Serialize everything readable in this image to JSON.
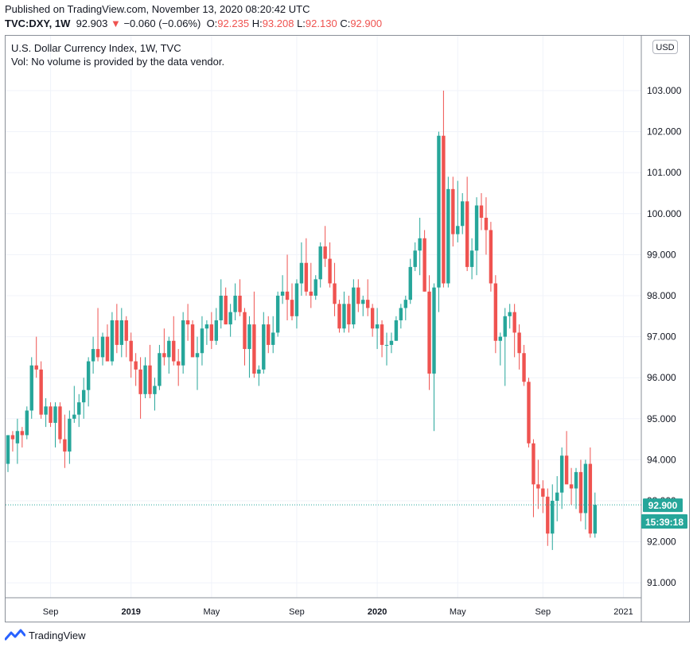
{
  "header": {
    "published": "Published on TradingView.com, November 13, 2020 08:20:42 UTC",
    "symbol": "TVC:DXY, 1W",
    "last": "92.903",
    "change_arrow": "▼",
    "change": "−0.060 (−0.06%)",
    "open_label": "O:",
    "open": "92.235",
    "high_label": "H:",
    "high": "93.208",
    "low_label": "L:",
    "low": "92.130",
    "close_label": "C:",
    "close": "92.900"
  },
  "legend": {
    "title": "U.S. Dollar Currency Index, 1W, TVC",
    "volume": "Vol: No volume is provided by the data vendor."
  },
  "currency_button": "USD",
  "price_badge": {
    "price": "92.900",
    "countdown": "15:39:18"
  },
  "footer": {
    "brand": "TradingView"
  },
  "colors": {
    "up": "#26a69a",
    "down": "#ef5350",
    "grid": "#f0f3fa",
    "badge": "#26a69a"
  },
  "chart_data": {
    "type": "candlestick",
    "title": "U.S. Dollar Currency Index, 1W, TVC",
    "ylim": [
      90.5,
      104
    ],
    "y_ticks": [
      91,
      92,
      93,
      94,
      95,
      96,
      97,
      98,
      99,
      100,
      101,
      102,
      103
    ],
    "y_tick_labels": [
      "91.000",
      "92.000",
      "93.000",
      "94.000",
      "95.000",
      "96.000",
      "97.000",
      "98.000",
      "99.000",
      "100.000",
      "101.000",
      "102.000",
      "103.000"
    ],
    "x_ticks": [
      {
        "label": "Sep",
        "index": 9,
        "bold": false
      },
      {
        "label": "2019",
        "index": 26,
        "bold": true
      },
      {
        "label": "May",
        "index": 43,
        "bold": false
      },
      {
        "label": "Sep",
        "index": 61,
        "bold": false
      },
      {
        "label": "2020",
        "index": 78,
        "bold": true
      },
      {
        "label": "May",
        "index": 95,
        "bold": false
      },
      {
        "label": "Sep",
        "index": 113,
        "bold": false
      },
      {
        "label": "2021",
        "index": 130,
        "bold": false
      }
    ],
    "last_price": 92.9,
    "candles": [
      {
        "o": 93.9,
        "h": 94.6,
        "l": 93.7,
        "c": 94.6
      },
      {
        "o": 94.6,
        "h": 94.7,
        "l": 94.2,
        "c": 94.5
      },
      {
        "o": 94.4,
        "h": 95.0,
        "l": 93.9,
        "c": 94.7
      },
      {
        "o": 94.7,
        "h": 94.8,
        "l": 94.3,
        "c": 94.6
      },
      {
        "o": 94.6,
        "h": 95.3,
        "l": 94.5,
        "c": 95.2
      },
      {
        "o": 95.2,
        "h": 96.5,
        "l": 95.0,
        "c": 96.3
      },
      {
        "o": 96.3,
        "h": 97.0,
        "l": 96.0,
        "c": 96.2
      },
      {
        "o": 96.2,
        "h": 96.4,
        "l": 95.0,
        "c": 95.1
      },
      {
        "o": 95.1,
        "h": 95.5,
        "l": 94.8,
        "c": 95.3
      },
      {
        "o": 95.3,
        "h": 95.4,
        "l": 94.8,
        "c": 94.9
      },
      {
        "o": 94.9,
        "h": 95.4,
        "l": 94.3,
        "c": 95.3
      },
      {
        "o": 95.3,
        "h": 95.4,
        "l": 94.4,
        "c": 94.5
      },
      {
        "o": 94.5,
        "h": 95.1,
        "l": 93.8,
        "c": 94.2
      },
      {
        "o": 94.2,
        "h": 95.2,
        "l": 93.9,
        "c": 95.0
      },
      {
        "o": 95.0,
        "h": 95.8,
        "l": 94.9,
        "c": 95.1
      },
      {
        "o": 95.1,
        "h": 95.6,
        "l": 94.8,
        "c": 95.4
      },
      {
        "o": 95.4,
        "h": 96.0,
        "l": 95.0,
        "c": 95.7
      },
      {
        "o": 95.7,
        "h": 96.5,
        "l": 95.3,
        "c": 96.4
      },
      {
        "o": 96.4,
        "h": 97.0,
        "l": 96.1,
        "c": 96.7
      },
      {
        "o": 96.7,
        "h": 97.7,
        "l": 96.4,
        "c": 96.5
      },
      {
        "o": 96.5,
        "h": 97.1,
        "l": 96.3,
        "c": 97.0
      },
      {
        "o": 97.0,
        "h": 97.3,
        "l": 96.4,
        "c": 96.4
      },
      {
        "o": 96.4,
        "h": 97.6,
        "l": 96.3,
        "c": 97.4
      },
      {
        "o": 97.4,
        "h": 97.8,
        "l": 96.6,
        "c": 96.8
      },
      {
        "o": 96.8,
        "h": 97.7,
        "l": 96.5,
        "c": 97.4
      },
      {
        "o": 97.4,
        "h": 97.5,
        "l": 96.5,
        "c": 96.9
      },
      {
        "o": 96.9,
        "h": 97.1,
        "l": 96.0,
        "c": 96.4
      },
      {
        "o": 96.4,
        "h": 96.6,
        "l": 95.8,
        "c": 96.2
      },
      {
        "o": 96.2,
        "h": 96.5,
        "l": 95.0,
        "c": 95.6
      },
      {
        "o": 95.6,
        "h": 96.5,
        "l": 95.5,
        "c": 96.3
      },
      {
        "o": 96.3,
        "h": 96.8,
        "l": 95.5,
        "c": 95.6
      },
      {
        "o": 95.6,
        "h": 96.0,
        "l": 95.2,
        "c": 95.8
      },
      {
        "o": 95.8,
        "h": 96.8,
        "l": 95.7,
        "c": 96.6
      },
      {
        "o": 96.6,
        "h": 97.2,
        "l": 96.3,
        "c": 96.5
      },
      {
        "o": 96.5,
        "h": 97.0,
        "l": 96.1,
        "c": 96.9
      },
      {
        "o": 96.9,
        "h": 97.5,
        "l": 96.3,
        "c": 96.4
      },
      {
        "o": 96.4,
        "h": 96.7,
        "l": 95.8,
        "c": 96.3
      },
      {
        "o": 96.3,
        "h": 97.6,
        "l": 96.1,
        "c": 97.4
      },
      {
        "o": 97.4,
        "h": 97.8,
        "l": 96.9,
        "c": 97.3
      },
      {
        "o": 97.3,
        "h": 97.4,
        "l": 96.5,
        "c": 96.5
      },
      {
        "o": 96.5,
        "h": 97.0,
        "l": 95.7,
        "c": 96.6
      },
      {
        "o": 96.6,
        "h": 97.5,
        "l": 96.3,
        "c": 97.2
      },
      {
        "o": 97.2,
        "h": 97.4,
        "l": 96.8,
        "c": 97.3
      },
      {
        "o": 97.3,
        "h": 97.6,
        "l": 96.7,
        "c": 96.9
      },
      {
        "o": 96.9,
        "h": 97.7,
        "l": 96.8,
        "c": 97.4
      },
      {
        "o": 97.4,
        "h": 98.4,
        "l": 97.2,
        "c": 98.0
      },
      {
        "o": 98.0,
        "h": 98.2,
        "l": 97.3,
        "c": 97.3
      },
      {
        "o": 97.3,
        "h": 97.8,
        "l": 97.0,
        "c": 97.6
      },
      {
        "o": 97.6,
        "h": 98.3,
        "l": 97.4,
        "c": 98.0
      },
      {
        "o": 98.0,
        "h": 98.4,
        "l": 97.5,
        "c": 97.6
      },
      {
        "o": 97.6,
        "h": 97.7,
        "l": 96.3,
        "c": 96.7
      },
      {
        "o": 96.7,
        "h": 97.5,
        "l": 96.0,
        "c": 97.3
      },
      {
        "o": 97.3,
        "h": 98.1,
        "l": 96.0,
        "c": 96.1
      },
      {
        "o": 96.1,
        "h": 96.3,
        "l": 95.8,
        "c": 96.2
      },
      {
        "o": 96.2,
        "h": 97.6,
        "l": 96.1,
        "c": 97.3
      },
      {
        "o": 97.3,
        "h": 97.5,
        "l": 96.6,
        "c": 96.8
      },
      {
        "o": 96.8,
        "h": 97.5,
        "l": 96.6,
        "c": 97.1
      },
      {
        "o": 97.1,
        "h": 98.1,
        "l": 97.0,
        "c": 98.0
      },
      {
        "o": 98.0,
        "h": 98.5,
        "l": 97.8,
        "c": 98.1
      },
      {
        "o": 98.1,
        "h": 99.0,
        "l": 97.4,
        "c": 97.9
      },
      {
        "o": 97.9,
        "h": 98.3,
        "l": 97.4,
        "c": 97.5
      },
      {
        "o": 97.5,
        "h": 98.4,
        "l": 97.2,
        "c": 98.3
      },
      {
        "o": 98.3,
        "h": 99.3,
        "l": 98.0,
        "c": 98.8
      },
      {
        "o": 98.8,
        "h": 99.4,
        "l": 98.0,
        "c": 98.1
      },
      {
        "o": 98.1,
        "h": 98.8,
        "l": 97.7,
        "c": 98.0
      },
      {
        "o": 98.0,
        "h": 98.5,
        "l": 97.9,
        "c": 98.4
      },
      {
        "o": 98.4,
        "h": 99.3,
        "l": 98.2,
        "c": 99.2
      },
      {
        "o": 99.2,
        "h": 99.7,
        "l": 98.7,
        "c": 98.9
      },
      {
        "o": 98.9,
        "h": 99.3,
        "l": 98.2,
        "c": 98.3
      },
      {
        "o": 98.3,
        "h": 98.8,
        "l": 97.5,
        "c": 97.8
      },
      {
        "o": 97.8,
        "h": 97.9,
        "l": 97.1,
        "c": 97.2
      },
      {
        "o": 97.2,
        "h": 98.1,
        "l": 97.1,
        "c": 97.8
      },
      {
        "o": 97.8,
        "h": 98.0,
        "l": 97.1,
        "c": 97.3
      },
      {
        "o": 97.3,
        "h": 98.4,
        "l": 97.2,
        "c": 98.2
      },
      {
        "o": 98.2,
        "h": 98.4,
        "l": 97.6,
        "c": 97.8
      },
      {
        "o": 97.8,
        "h": 98.0,
        "l": 97.5,
        "c": 97.9
      },
      {
        "o": 97.9,
        "h": 98.4,
        "l": 97.5,
        "c": 97.7
      },
      {
        "o": 97.7,
        "h": 97.8,
        "l": 97.0,
        "c": 97.2
      },
      {
        "o": 97.2,
        "h": 97.7,
        "l": 96.7,
        "c": 97.3
      },
      {
        "o": 97.3,
        "h": 97.4,
        "l": 96.5,
        "c": 96.8
      },
      {
        "o": 96.8,
        "h": 97.1,
        "l": 96.3,
        "c": 96.8
      },
      {
        "o": 96.8,
        "h": 97.1,
        "l": 96.6,
        "c": 96.9
      },
      {
        "o": 96.9,
        "h": 97.5,
        "l": 96.9,
        "c": 97.4
      },
      {
        "o": 97.4,
        "h": 97.8,
        "l": 97.2,
        "c": 97.7
      },
      {
        "o": 97.7,
        "h": 98.0,
        "l": 97.4,
        "c": 97.9
      },
      {
        "o": 97.9,
        "h": 98.9,
        "l": 97.8,
        "c": 98.7
      },
      {
        "o": 98.7,
        "h": 99.3,
        "l": 98.6,
        "c": 99.1
      },
      {
        "o": 99.1,
        "h": 99.9,
        "l": 98.5,
        "c": 99.4
      },
      {
        "o": 99.4,
        "h": 99.6,
        "l": 98.1,
        "c": 98.1
      },
      {
        "o": 98.1,
        "h": 98.5,
        "l": 95.7,
        "c": 96.1
      },
      {
        "o": 96.1,
        "h": 98.3,
        "l": 94.7,
        "c": 98.2
      },
      {
        "o": 98.2,
        "h": 102.0,
        "l": 97.6,
        "c": 101.9
      },
      {
        "o": 101.9,
        "h": 103.0,
        "l": 98.2,
        "c": 98.3
      },
      {
        "o": 98.3,
        "h": 100.9,
        "l": 98.2,
        "c": 100.6
      },
      {
        "o": 100.6,
        "h": 100.9,
        "l": 99.2,
        "c": 99.5
      },
      {
        "o": 99.5,
        "h": 100.8,
        "l": 99.3,
        "c": 99.7
      },
      {
        "o": 99.7,
        "h": 100.5,
        "l": 99.5,
        "c": 100.3
      },
      {
        "o": 100.3,
        "h": 100.9,
        "l": 98.6,
        "c": 98.7
      },
      {
        "o": 98.7,
        "h": 99.4,
        "l": 98.4,
        "c": 99.1
      },
      {
        "o": 99.1,
        "h": 100.4,
        "l": 98.5,
        "c": 100.2
      },
      {
        "o": 100.2,
        "h": 100.5,
        "l": 99.6,
        "c": 99.9
      },
      {
        "o": 99.9,
        "h": 100.4,
        "l": 99.0,
        "c": 99.6
      },
      {
        "o": 99.6,
        "h": 99.8,
        "l": 98.1,
        "c": 98.3
      },
      {
        "o": 98.3,
        "h": 98.5,
        "l": 96.6,
        "c": 96.9
      },
      {
        "o": 96.9,
        "h": 97.1,
        "l": 96.3,
        "c": 97.0
      },
      {
        "o": 97.0,
        "h": 97.7,
        "l": 95.8,
        "c": 97.5
      },
      {
        "o": 97.5,
        "h": 97.8,
        "l": 97.2,
        "c": 97.6
      },
      {
        "o": 97.6,
        "h": 97.8,
        "l": 96.5,
        "c": 97.1
      },
      {
        "o": 97.1,
        "h": 97.3,
        "l": 96.2,
        "c": 96.6
      },
      {
        "o": 96.6,
        "h": 96.8,
        "l": 95.8,
        "c": 95.9
      },
      {
        "o": 95.9,
        "h": 96.0,
        "l": 94.3,
        "c": 94.4
      },
      {
        "o": 94.4,
        "h": 94.5,
        "l": 92.6,
        "c": 93.4
      },
      {
        "o": 93.4,
        "h": 94.0,
        "l": 92.8,
        "c": 93.3
      },
      {
        "o": 93.3,
        "h": 93.5,
        "l": 92.7,
        "c": 93.1
      },
      {
        "o": 93.1,
        "h": 93.3,
        "l": 91.9,
        "c": 92.2
      },
      {
        "o": 92.2,
        "h": 93.4,
        "l": 91.8,
        "c": 93.0
      },
      {
        "o": 93.0,
        "h": 93.6,
        "l": 92.5,
        "c": 93.2
      },
      {
        "o": 93.2,
        "h": 94.3,
        "l": 92.8,
        "c": 94.1
      },
      {
        "o": 94.1,
        "h": 94.7,
        "l": 93.5,
        "c": 93.4
      },
      {
        "o": 93.4,
        "h": 93.8,
        "l": 92.9,
        "c": 93.3
      },
      {
        "o": 93.3,
        "h": 93.8,
        "l": 92.8,
        "c": 93.7
      },
      {
        "o": 93.7,
        "h": 94.0,
        "l": 92.5,
        "c": 92.7
      },
      {
        "o": 92.7,
        "h": 94.0,
        "l": 92.3,
        "c": 93.9
      },
      {
        "o": 93.9,
        "h": 94.3,
        "l": 92.1,
        "c": 92.2
      },
      {
        "o": 92.2,
        "h": 93.2,
        "l": 92.1,
        "c": 92.9
      }
    ]
  }
}
